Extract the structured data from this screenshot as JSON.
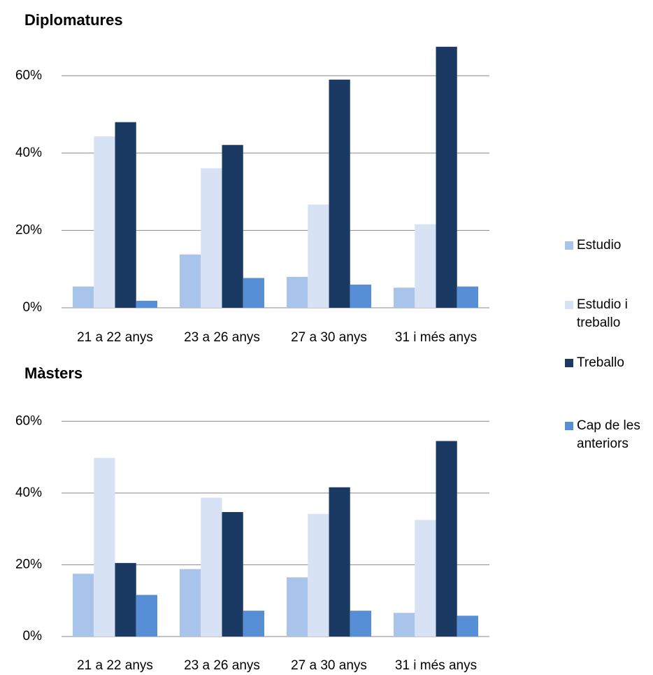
{
  "chart_data": [
    {
      "type": "bar",
      "title": "Diplomatures",
      "categories": [
        "21 a 22 anys",
        "23 a 26 anys",
        "27 a 30 anys",
        "31 i més anys"
      ],
      "series": [
        {
          "name": "Estudio",
          "color": "#a9c4eb",
          "values": [
            5.5,
            13.8,
            8.0,
            5.2
          ]
        },
        {
          "name": "Estudio i treballo",
          "color": "#d7e3f4",
          "values": [
            44.3,
            36.1,
            26.7,
            21.6
          ]
        },
        {
          "name": "Treballo",
          "color": "#1b3a63",
          "values": [
            48.0,
            42.1,
            59.0,
            67.5
          ]
        },
        {
          "name": "Cap de les anteriors",
          "color": "#578fd7",
          "values": [
            1.8,
            7.7,
            6.0,
            5.5
          ]
        }
      ],
      "ylim": [
        0,
        70
      ],
      "yticks": [
        {
          "value": 0,
          "label": "0%"
        },
        {
          "value": 20,
          "label": "20%"
        },
        {
          "value": 40,
          "label": "40%"
        },
        {
          "value": 60,
          "label": "60%"
        }
      ],
      "grid": true,
      "legend": "right"
    },
    {
      "type": "bar",
      "title": "Màsters",
      "categories": [
        "21 a 22 anys",
        "23 a 26 anys",
        "27 a 30 anys",
        "31 i més anys"
      ],
      "series": [
        {
          "name": "Estudio",
          "color": "#a9c4eb",
          "values": [
            17.5,
            18.8,
            16.5,
            6.6
          ]
        },
        {
          "name": "Estudio i treballo",
          "color": "#d7e3f4",
          "values": [
            49.8,
            38.7,
            34.2,
            32.5
          ]
        },
        {
          "name": "Treballo",
          "color": "#1b3a63",
          "values": [
            20.5,
            34.7,
            41.6,
            54.5
          ]
        },
        {
          "name": "Cap de les anteriors",
          "color": "#578fd7",
          "values": [
            11.6,
            7.2,
            7.2,
            5.8
          ]
        }
      ],
      "ylim": [
        0,
        70
      ],
      "yticks": [
        {
          "value": 0,
          "label": "0%"
        },
        {
          "value": 20,
          "label": "20%"
        },
        {
          "value": 40,
          "label": "40%"
        },
        {
          "value": 60,
          "label": "60%"
        }
      ],
      "grid": true
    }
  ]
}
